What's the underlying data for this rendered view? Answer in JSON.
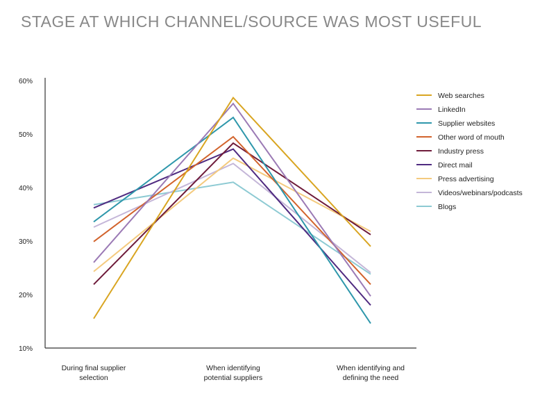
{
  "chart_data": {
    "type": "line",
    "title": "STAGE AT WHICH CHANNEL/SOURCE WAS MOST USEFUL",
    "xlabel": "",
    "ylabel": "",
    "categories": [
      [
        "During final supplier",
        "selection"
      ],
      [
        "When identifying",
        "potential suppliers"
      ],
      [
        "When identifying and",
        "defining the need"
      ]
    ],
    "ylim": [
      10,
      60
    ],
    "yticks": [
      10,
      20,
      30,
      40,
      50,
      60
    ],
    "ytick_labels": [
      "10%",
      "20%",
      "30%",
      "40%",
      "50%",
      "60%"
    ],
    "grid": false,
    "legend_position": "right",
    "series": [
      {
        "name": "Web searches",
        "color": "#D9A521",
        "values": [
          15.5,
          56.8,
          29.0
        ]
      },
      {
        "name": "LinkedIn",
        "color": "#9B7AB5",
        "values": [
          26.0,
          55.7,
          19.7
        ]
      },
      {
        "name": "Supplier websites",
        "color": "#2E97AB",
        "values": [
          33.6,
          53.1,
          14.6
        ]
      },
      {
        "name": "Other word of mouth",
        "color": "#D2632C",
        "values": [
          29.9,
          49.5,
          21.9
        ]
      },
      {
        "name": "Industry press",
        "color": "#6E1B3A",
        "values": [
          21.9,
          48.3,
          31.2
        ]
      },
      {
        "name": "Direct mail",
        "color": "#4F2A80",
        "values": [
          36.2,
          47.2,
          18.0
        ]
      },
      {
        "name": "Press advertising",
        "color": "#F4CA7E",
        "values": [
          24.3,
          45.5,
          31.8
        ]
      },
      {
        "name": "Videos/webinars/podcasts",
        "color": "#C4B6D8",
        "values": [
          32.6,
          44.5,
          24.1
        ]
      },
      {
        "name": "Blogs",
        "color": "#8DCAD3",
        "values": [
          36.8,
          41.0,
          23.8
        ]
      }
    ]
  }
}
